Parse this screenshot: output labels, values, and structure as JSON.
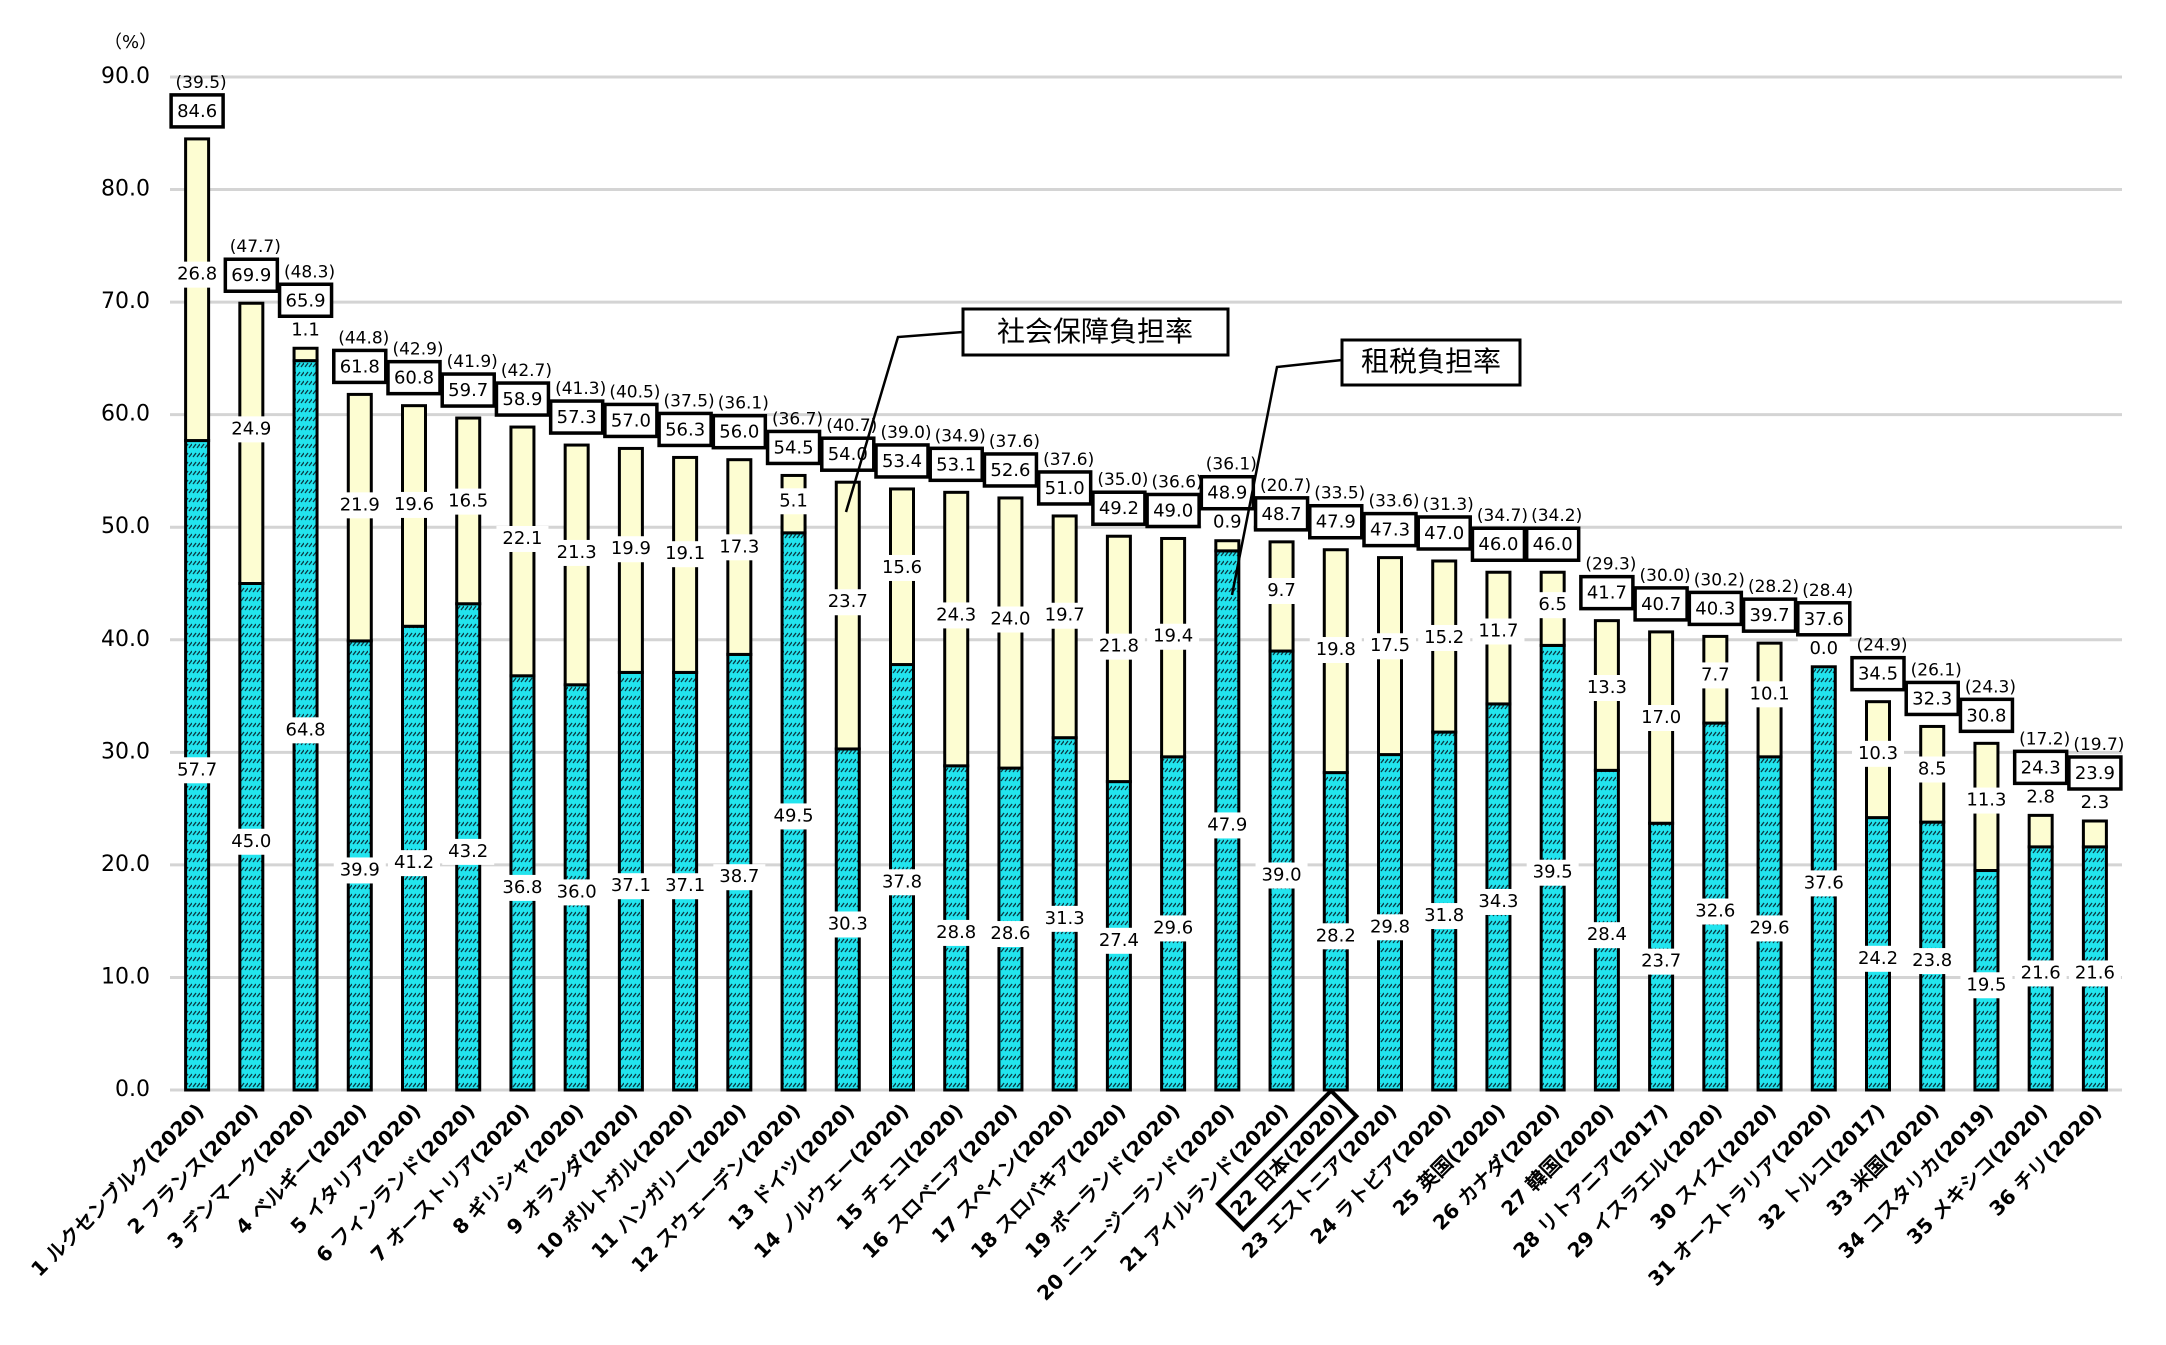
{
  "chart_data": {
    "type": "bar",
    "stacked": true,
    "unit_label": "（%）",
    "ylim": [
      0,
      90
    ],
    "yticks": [
      0,
      10,
      20,
      30,
      40,
      50,
      60,
      70,
      80,
      90
    ],
    "grid": true,
    "highlight_category_index": 21,
    "categories": [
      "1 ルクセンブルク(2020)",
      "2 フランス(2020)",
      "3 デンマーク(2020)",
      "4 ベルギー(2020)",
      "5 イタリア(2020)",
      "6 フィンランド(2020)",
      "7 オーストリア(2020)",
      "8 ギリシャ(2020)",
      "9 オランダ(2020)",
      "10 ポルトガル(2020)",
      "11 ハンガリー(2020)",
      "12 スウェーデン(2020)",
      "13 ドイツ(2020)",
      "14 ノルウェー(2020)",
      "15 チェコ(2020)",
      "16 スロベニア(2020)",
      "17 スペイン(2020)",
      "18 スロバキア(2020)",
      "19 ポーランド(2020)",
      "20 ニュージーランド(2020)",
      "21 アイルランド(2020)",
      "22 日本(2020)",
      "23 エストニア(2020)",
      "24 ラトビア(2020)",
      "25 英国(2020)",
      "26 カナダ(2020)",
      "27 韓国(2020)",
      "28 リトアニア(2017)",
      "29 イスラエル(2020)",
      "30 スイス(2020)",
      "31 オーストラリア(2020)",
      "32 トルコ(2017)",
      "33 米国(2020)",
      "34 コスタリカ(2019)",
      "35 メキシコ(2020)",
      "36 チリ(2020)"
    ],
    "series": [
      {
        "name": "租税負担率",
        "color": "#22e4ee",
        "pattern": "diagonal-hatch",
        "values": [
          57.7,
          45.0,
          64.8,
          39.9,
          41.2,
          43.2,
          36.8,
          36.0,
          37.1,
          37.1,
          38.7,
          49.5,
          30.3,
          37.8,
          28.8,
          28.6,
          31.3,
          27.4,
          29.6,
          47.9,
          39.0,
          28.2,
          29.8,
          31.8,
          34.3,
          39.5,
          28.4,
          23.7,
          32.6,
          29.6,
          37.6,
          24.2,
          23.8,
          19.5,
          21.6,
          21.6
        ]
      },
      {
        "name": "社会保障負担率",
        "color": "#fdfdd2",
        "values": [
          26.8,
          24.9,
          1.1,
          21.9,
          19.6,
          16.5,
          22.1,
          21.3,
          19.9,
          19.1,
          17.3,
          5.1,
          23.7,
          15.6,
          24.3,
          24.0,
          19.7,
          21.8,
          19.4,
          0.9,
          9.7,
          19.8,
          17.5,
          15.2,
          11.7,
          6.5,
          13.3,
          17.0,
          7.7,
          10.1,
          0.0,
          10.3,
          8.5,
          11.3,
          2.8,
          2.3
        ]
      }
    ],
    "totals": [
      84.6,
      69.9,
      65.9,
      61.8,
      60.8,
      59.7,
      58.9,
      57.3,
      57.0,
      56.3,
      56.0,
      54.5,
      54.0,
      53.4,
      53.1,
      52.6,
      51.0,
      49.2,
      49.0,
      48.9,
      48.7,
      47.9,
      47.3,
      47.0,
      46.0,
      46.0,
      41.7,
      40.7,
      40.3,
      39.7,
      37.6,
      34.5,
      32.3,
      30.8,
      24.3,
      23.9
    ],
    "ratios_in_parentheses": [
      "(39.5)",
      "(47.7)",
      "(48.3)",
      "(44.8)",
      "(42.9)",
      "(41.9)",
      "(42.7)",
      "(41.3)",
      "(40.5)",
      "(37.5)",
      "(36.1)",
      "(36.7)",
      "(40.7)",
      "(39.0)",
      "(34.9)",
      "(37.6)",
      "(37.6)",
      "(35.0)",
      "(36.6)",
      "(36.1)",
      "(20.7)",
      "(33.5)",
      "(33.6)",
      "(31.3)",
      "(34.7)",
      "(34.2)",
      "(29.3)",
      "(30.0)",
      "(30.2)",
      "(28.2)",
      "(28.4)",
      "(24.9)",
      "(26.1)",
      "(24.3)",
      "(17.2)",
      "(19.7)"
    ],
    "annotations": [
      {
        "text": "社会保障負担率",
        "points_to_category_index": 12
      },
      {
        "text": "租税負担率",
        "points_to_category_index": 19
      }
    ]
  }
}
